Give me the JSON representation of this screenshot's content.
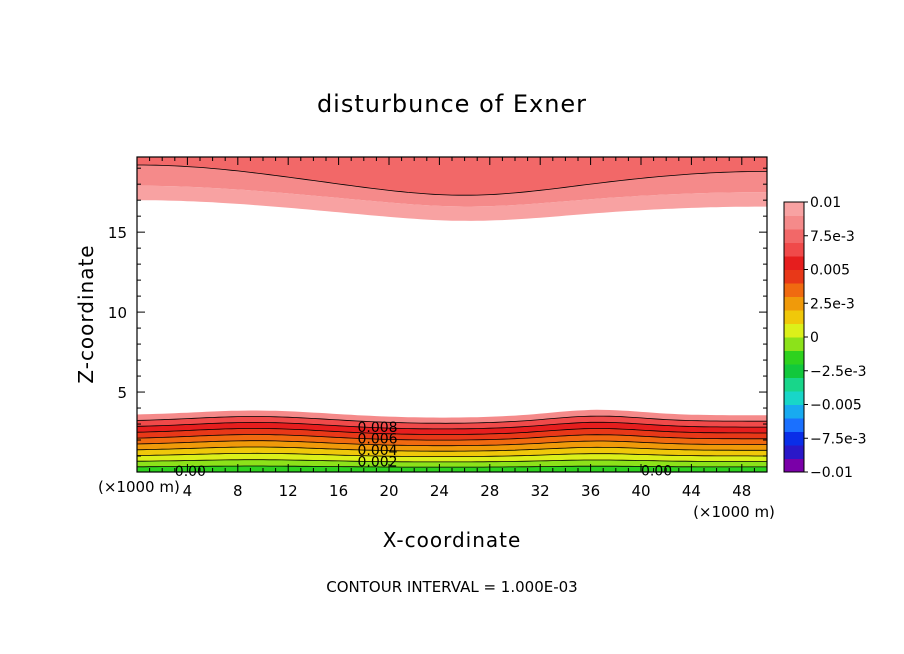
{
  "chart_data": {
    "type": "heatmap",
    "title": "disturbunce of Exner",
    "xlabel": "X-coordinate",
    "ylabel": "Z-coordinate",
    "x_unit_left": "(×1000 m)",
    "x_unit_right": "(×1000 m)",
    "xlim": [
      0,
      50
    ],
    "ylim": [
      0,
      19.7
    ],
    "x_ticks": [
      "4",
      "8",
      "12",
      "16",
      "20",
      "24",
      "28",
      "32",
      "36",
      "40",
      "44",
      "48"
    ],
    "y_ticks": [
      "5",
      "10",
      "15"
    ],
    "footer": "CONTOUR INTERVAL = 1.000E-03",
    "colorbar": {
      "ticks": [
        "0.01",
        "7.5e-3",
        "0.005",
        "2.5e-3",
        "0",
        "−2.5e-3",
        "−0.005",
        "−7.5e-3",
        "−0.01"
      ],
      "min": -0.01,
      "max": 0.01,
      "colors": [
        "#7a00a8",
        "#2a18c8",
        "#0a2ee8",
        "#1a70ff",
        "#18aaf0",
        "#18d6c8",
        "#18d68a",
        "#12c83c",
        "#2ed21e",
        "#8ce21a",
        "#dcf01a",
        "#f0c80a",
        "#f09a0a",
        "#f06a10",
        "#e83818",
        "#e61e1e",
        "#f04a4a",
        "#f26868",
        "#f58a8a",
        "#f8a2a2"
      ]
    },
    "contour_labels": [
      "0.008",
      "0.006",
      "0.004",
      "0.002",
      "0.00",
      "0.00"
    ],
    "bands": [
      {
        "level": 0.0005,
        "color": "#2ed21e"
      },
      {
        "level": 0.0015,
        "color": "#8ce21a"
      },
      {
        "level": 0.0025,
        "color": "#dcf01a"
      },
      {
        "level": 0.0035,
        "color": "#f0c80a"
      },
      {
        "level": 0.0045,
        "color": "#f09a0a"
      },
      {
        "level": 0.0055,
        "color": "#f06a10"
      },
      {
        "level": 0.0065,
        "color": "#e83818"
      },
      {
        "level": 0.0075,
        "color": "#e61e1e"
      },
      {
        "level": 0.0085,
        "color": "#f04a4a"
      },
      {
        "level": 0.0095,
        "color": "#f58a8a"
      }
    ],
    "top_bands": [
      {
        "color": "#f8a2a2"
      },
      {
        "color": "#f58a8a"
      },
      {
        "color": "#f26868"
      }
    ]
  }
}
